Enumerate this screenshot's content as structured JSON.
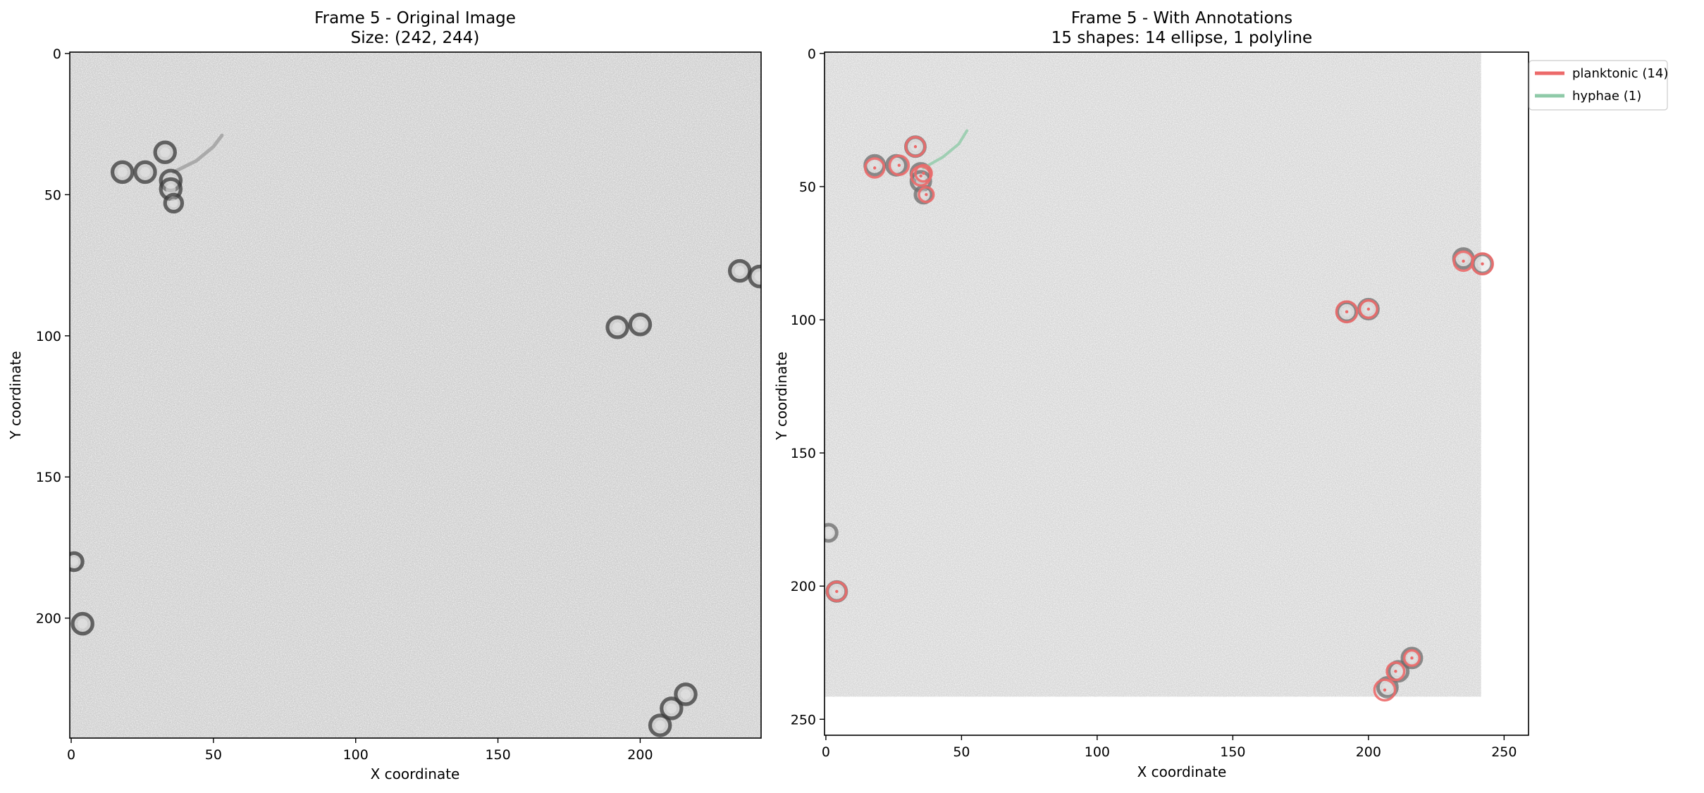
{
  "chart_data": [
    {
      "type": "image",
      "title_line1": "Frame 5 - Original Image",
      "title_line2": "Size: (242, 244)",
      "xlabel": "X coordinate",
      "ylabel": "Y coordinate",
      "xlim": [
        -0.5,
        242.5
      ],
      "ylim": [
        242.5,
        -0.5
      ],
      "xticks": [
        0,
        50,
        100,
        150,
        200
      ],
      "yticks": [
        0,
        50,
        100,
        150,
        200
      ],
      "image_extent": [
        242,
        242
      ],
      "cells": [
        {
          "x": 18,
          "y": 42,
          "r": 3.5
        },
        {
          "x": 26,
          "y": 42,
          "r": 3.5
        },
        {
          "x": 33,
          "y": 35,
          "r": 3.5
        },
        {
          "x": 35,
          "y": 45,
          "r": 3.5
        },
        {
          "x": 35,
          "y": 48,
          "r": 3.5
        },
        {
          "x": 36,
          "y": 53,
          "r": 3
        },
        {
          "x": 4,
          "y": 202,
          "r": 3.5
        },
        {
          "x": 1,
          "y": 180,
          "r": 3
        },
        {
          "x": 192,
          "y": 97,
          "r": 3.5
        },
        {
          "x": 200,
          "y": 96,
          "r": 3.5
        },
        {
          "x": 235,
          "y": 77,
          "r": 3.5
        },
        {
          "x": 242,
          "y": 79,
          "r": 3.5
        },
        {
          "x": 207,
          "y": 238,
          "r": 3.5
        },
        {
          "x": 211,
          "y": 232,
          "r": 3.5
        },
        {
          "x": 216,
          "y": 227,
          "r": 3.5
        }
      ],
      "hyphae_path": [
        [
          36,
          42
        ],
        [
          44,
          38
        ],
        [
          50,
          33
        ],
        [
          53,
          29
        ]
      ]
    },
    {
      "type": "image-annotations",
      "title_line1": "Frame 5 - With Annotations",
      "title_line2": "15 shapes: 14 ellipse, 1 polyline",
      "xlabel": "X coordinate",
      "ylabel": "Y coordinate",
      "xlim": [
        -0.5,
        259
      ],
      "ylim": [
        256,
        -0.5
      ],
      "xticks": [
        0,
        50,
        100,
        150,
        200,
        250
      ],
      "yticks": [
        0,
        50,
        100,
        150,
        200,
        250
      ],
      "image_extent": [
        242,
        242
      ],
      "legend_position": "outside top-right",
      "series": [
        {
          "name": "planktonic (14)",
          "color": "#ec6a6a",
          "shape": "ellipse",
          "ellipses": [
            {
              "x": 18,
              "y": 43,
              "r": 3.5
            },
            {
              "x": 27,
              "y": 42,
              "r": 3.5
            },
            {
              "x": 33,
              "y": 35,
              "r": 3.5
            },
            {
              "x": 35,
              "y": 46,
              "r": 3.5
            },
            {
              "x": 36,
              "y": 45,
              "r": 3
            },
            {
              "x": 37,
              "y": 53,
              "r": 2.7
            },
            {
              "x": 4,
              "y": 202,
              "r": 3.5
            },
            {
              "x": 192,
              "y": 97,
              "r": 3.8
            },
            {
              "x": 200,
              "y": 96,
              "r": 3.2
            },
            {
              "x": 235,
              "y": 78,
              "r": 3.5
            },
            {
              "x": 242,
              "y": 79,
              "r": 3.8
            },
            {
              "x": 206,
              "y": 239,
              "r": 3.8
            },
            {
              "x": 210,
              "y": 232,
              "r": 3.2
            },
            {
              "x": 216,
              "y": 227,
              "r": 2.8
            }
          ]
        },
        {
          "name": "hyphae (1)",
          "color": "#8fcaa8",
          "shape": "polyline",
          "points": [
            [
              36,
              43
            ],
            [
              43,
              39
            ],
            [
              49,
              34
            ],
            [
              52,
              29
            ]
          ]
        }
      ]
    }
  ]
}
